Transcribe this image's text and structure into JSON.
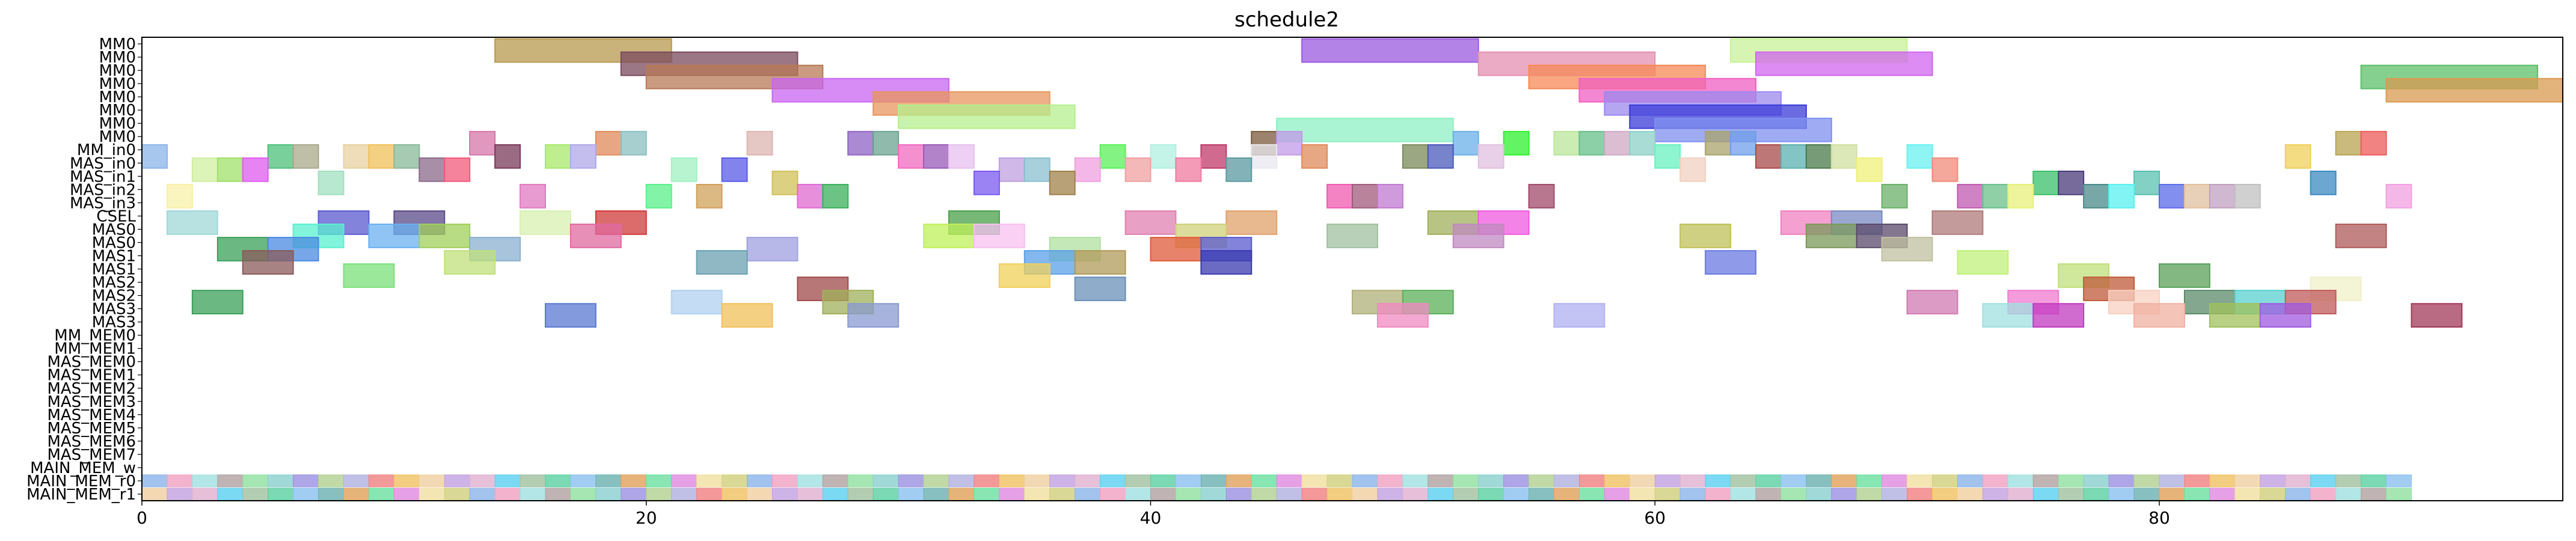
{
  "chart_data": {
    "type": "gantt",
    "title": "schedule2",
    "xlim": [
      0,
      96
    ],
    "xticks": [
      0,
      20,
      40,
      60,
      80
    ],
    "rows": [
      "MM0",
      "MM0",
      "MM0",
      "MM0",
      "MM0",
      "MM0",
      "MM0",
      "MM0",
      "MM_in0",
      "MAS_in0",
      "MAS_in1",
      "MAS_in2",
      "MAS_in3",
      "CSEL",
      "MAS0",
      "MAS0",
      "MAS1",
      "MAS1",
      "MAS2",
      "MAS2",
      "MAS3",
      "MAS3",
      "MM_MEM0",
      "MM_MEM1",
      "MAS_MEM0",
      "MAS_MEM1",
      "MAS_MEM2",
      "MAS_MEM3",
      "MAS_MEM4",
      "MAS_MEM5",
      "MAS_MEM6",
      "MAS_MEM7",
      "MAIN_MEM_w",
      "MAIN_MEM_r0",
      "MAIN_MEM_r1"
    ],
    "tasks": [
      {
        "row": 0,
        "start": 14,
        "end": 21,
        "color": "#b8994e"
      },
      {
        "row": 0,
        "start": 46,
        "end": 53,
        "color": "#9b59e0"
      },
      {
        "row": 0,
        "start": 63,
        "end": 70,
        "color": "#c8f29a"
      },
      {
        "row": 1,
        "start": 19,
        "end": 26,
        "color": "#7a4a5e"
      },
      {
        "row": 1,
        "start": 53,
        "end": 60,
        "color": "#e68fb0"
      },
      {
        "row": 1,
        "start": 64,
        "end": 71,
        "color": "#d066ee"
      },
      {
        "row": 2,
        "start": 20,
        "end": 27,
        "color": "#b87a55"
      },
      {
        "row": 2,
        "start": 55,
        "end": 62,
        "color": "#f58a55"
      },
      {
        "row": 2,
        "start": 88,
        "end": 95,
        "color": "#5cc06a"
      },
      {
        "row": 3,
        "start": 25,
        "end": 32,
        "color": "#c866f0"
      },
      {
        "row": 3,
        "start": 57,
        "end": 64,
        "color": "#ef5fc2"
      },
      {
        "row": 3,
        "start": 89,
        "end": 96,
        "color": "#d99a50"
      },
      {
        "row": 4,
        "start": 29,
        "end": 36,
        "color": "#e8955e"
      },
      {
        "row": 4,
        "start": 58,
        "end": 65,
        "color": "#9c88ee"
      },
      {
        "row": 5,
        "start": 30,
        "end": 37,
        "color": "#b5ef8e"
      },
      {
        "row": 5,
        "start": 59,
        "end": 66,
        "color": "#3a3ad8"
      },
      {
        "row": 6,
        "start": 45,
        "end": 52,
        "color": "#8ef0c4"
      },
      {
        "row": 6,
        "start": 60,
        "end": 67,
        "color": "#7f90ef"
      },
      {
        "row": 7,
        "start": 13,
        "end": 14,
        "color": "#d675a8"
      },
      {
        "row": 7,
        "start": 18,
        "end": 19,
        "color": "#e08a5a"
      },
      {
        "row": 7,
        "start": 19,
        "end": 20,
        "color": "#8abfc0"
      },
      {
        "row": 7,
        "start": 24,
        "end": 25,
        "color": "#dcb4b0"
      },
      {
        "row": 7,
        "start": 28,
        "end": 29,
        "color": "#8f63c4"
      },
      {
        "row": 7,
        "start": 29,
        "end": 30,
        "color": "#6aa390"
      },
      {
        "row": 7,
        "start": 44,
        "end": 45,
        "color": "#7a5a3e"
      },
      {
        "row": 7,
        "start": 45,
        "end": 46,
        "color": "#c29ae8"
      },
      {
        "row": 7,
        "start": 52,
        "end": 53,
        "color": "#6ab0e8"
      },
      {
        "row": 7,
        "start": 54,
        "end": 55,
        "color": "#2ff02f"
      },
      {
        "row": 7,
        "start": 56,
        "end": 57,
        "color": "#b9e59a"
      },
      {
        "row": 7,
        "start": 57,
        "end": 58,
        "color": "#66c08a"
      },
      {
        "row": 7,
        "start": 58,
        "end": 59,
        "color": "#d0a8c4"
      },
      {
        "row": 7,
        "start": 59,
        "end": 60,
        "color": "#8ed0c8"
      },
      {
        "row": 7,
        "start": 62,
        "end": 63,
        "color": "#a9a36a"
      },
      {
        "row": 7,
        "start": 63,
        "end": 64,
        "color": "#6f9fe8"
      },
      {
        "row": 7,
        "start": 87,
        "end": 88,
        "color": "#b8a450"
      },
      {
        "row": 7,
        "start": 88,
        "end": 89,
        "color": "#ee5a5a"
      },
      {
        "row": 8,
        "start": 0,
        "end": 1,
        "color": "#8ab4e8"
      },
      {
        "row": 8,
        "start": 5,
        "end": 6,
        "color": "#4ec07a"
      },
      {
        "row": 8,
        "start": 6,
        "end": 7,
        "color": "#a9a88a"
      },
      {
        "row": 8,
        "start": 8,
        "end": 9,
        "color": "#e8d2a0"
      },
      {
        "row": 8,
        "start": 9,
        "end": 10,
        "color": "#f0c05a"
      },
      {
        "row": 8,
        "start": 10,
        "end": 11,
        "color": "#8ab89a"
      },
      {
        "row": 8,
        "start": 14,
        "end": 15,
        "color": "#7a3a5a"
      },
      {
        "row": 8,
        "start": 16,
        "end": 17,
        "color": "#a8e86a"
      },
      {
        "row": 8,
        "start": 17,
        "end": 18,
        "color": "#b0a8e8"
      },
      {
        "row": 8,
        "start": 30,
        "end": 31,
        "color": "#f06ac0"
      },
      {
        "row": 8,
        "start": 31,
        "end": 32,
        "color": "#9a5ab8"
      },
      {
        "row": 8,
        "start": 32,
        "end": 33,
        "color": "#e8c0f0"
      },
      {
        "row": 8,
        "start": 38,
        "end": 39,
        "color": "#5af05a"
      },
      {
        "row": 8,
        "start": 40,
        "end": 41,
        "color": "#b0f0e0"
      },
      {
        "row": 8,
        "start": 42,
        "end": 43,
        "color": "#c03a6a"
      },
      {
        "row": 8,
        "start": 44,
        "end": 45,
        "color": "#e8e8f0"
      },
      {
        "row": 8,
        "start": 46,
        "end": 47,
        "color": "#e08a5a"
      },
      {
        "row": 8,
        "start": 50,
        "end": 51,
        "color": "#7a8a5a"
      },
      {
        "row": 8,
        "start": 51,
        "end": 52,
        "color": "#4a5ab8"
      },
      {
        "row": 8,
        "start": 53,
        "end": 54,
        "color": "#e0c0e0"
      },
      {
        "row": 8,
        "start": 60,
        "end": 61,
        "color": "#6af0c0"
      },
      {
        "row": 8,
        "start": 64,
        "end": 65,
        "color": "#a84a4a"
      },
      {
        "row": 8,
        "start": 65,
        "end": 66,
        "color": "#5ab0b0"
      },
      {
        "row": 8,
        "start": 66,
        "end": 67,
        "color": "#4a7a4a"
      },
      {
        "row": 8,
        "start": 67,
        "end": 68,
        "color": "#d0e0a0"
      },
      {
        "row": 8,
        "start": 70,
        "end": 71,
        "color": "#6af0f0"
      },
      {
        "row": 8,
        "start": 85,
        "end": 86,
        "color": "#f0d05a"
      },
      {
        "row": 9,
        "start": 2,
        "end": 3,
        "color": "#d0f0a0"
      },
      {
        "row": 9,
        "start": 3,
        "end": 4,
        "color": "#a0e06a"
      },
      {
        "row": 9,
        "start": 4,
        "end": 5,
        "color": "#e05af0"
      },
      {
        "row": 9,
        "start": 11,
        "end": 12,
        "color": "#8a6a8a"
      },
      {
        "row": 9,
        "start": 12,
        "end": 13,
        "color": "#f05a7a"
      },
      {
        "row": 9,
        "start": 21,
        "end": 22,
        "color": "#a0f0c0"
      },
      {
        "row": 9,
        "start": 23,
        "end": 24,
        "color": "#5a5ae8"
      },
      {
        "row": 9,
        "start": 34,
        "end": 35,
        "color": "#c0a0e0"
      },
      {
        "row": 9,
        "start": 35,
        "end": 36,
        "color": "#8ac0d0"
      },
      {
        "row": 9,
        "start": 37,
        "end": 38,
        "color": "#f0a0e0"
      },
      {
        "row": 9,
        "start": 39,
        "end": 40,
        "color": "#f0a0a0"
      },
      {
        "row": 9,
        "start": 41,
        "end": 42,
        "color": "#f07aa0"
      },
      {
        "row": 9,
        "start": 43,
        "end": 44,
        "color": "#5a9aa0"
      },
      {
        "row": 9,
        "start": 61,
        "end": 62,
        "color": "#f0d0c0"
      },
      {
        "row": 9,
        "start": 68,
        "end": 69,
        "color": "#f0f07a"
      },
      {
        "row": 9,
        "start": 71,
        "end": 72,
        "color": "#f08a7a"
      },
      {
        "row": 10,
        "start": 7,
        "end": 8,
        "color": "#a0e0c0"
      },
      {
        "row": 10,
        "start": 25,
        "end": 26,
        "color": "#d0c05a"
      },
      {
        "row": 10,
        "start": 33,
        "end": 34,
        "color": "#7a5af0"
      },
      {
        "row": 10,
        "start": 36,
        "end": 37,
        "color": "#a0804a"
      },
      {
        "row": 10,
        "start": 75,
        "end": 76,
        "color": "#3ac06a"
      },
      {
        "row": 10,
        "start": 76,
        "end": 77,
        "color": "#4a3a7a"
      },
      {
        "row": 10,
        "start": 79,
        "end": 80,
        "color": "#5ac0b0"
      },
      {
        "row": 10,
        "start": 86,
        "end": 87,
        "color": "#3a8ac0"
      },
      {
        "row": 11,
        "start": 1,
        "end": 2,
        "color": "#f8f0a8"
      },
      {
        "row": 11,
        "start": 15,
        "end": 16,
        "color": "#e07ac0"
      },
      {
        "row": 11,
        "start": 20,
        "end": 21,
        "color": "#5af08a"
      },
      {
        "row": 11,
        "start": 22,
        "end": 23,
        "color": "#d0a05a"
      },
      {
        "row": 11,
        "start": 26,
        "end": 27,
        "color": "#e06ad0"
      },
      {
        "row": 11,
        "start": 27,
        "end": 28,
        "color": "#3ab05a"
      },
      {
        "row": 11,
        "start": 47,
        "end": 48,
        "color": "#f05ab0"
      },
      {
        "row": 11,
        "start": 48,
        "end": 49,
        "color": "#a05a7a"
      },
      {
        "row": 11,
        "start": 49,
        "end": 50,
        "color": "#c07ad0"
      },
      {
        "row": 11,
        "start": 55,
        "end": 56,
        "color": "#a04a6a"
      },
      {
        "row": 11,
        "start": 69,
        "end": 70,
        "color": "#6ab06a"
      },
      {
        "row": 11,
        "start": 72,
        "end": 73,
        "color": "#c05ab0"
      },
      {
        "row": 11,
        "start": 73,
        "end": 74,
        "color": "#6ac08a"
      },
      {
        "row": 11,
        "start": 74,
        "end": 75,
        "color": "#e8f07a"
      },
      {
        "row": 11,
        "start": 77,
        "end": 78,
        "color": "#4a8a8a"
      },
      {
        "row": 11,
        "start": 78,
        "end": 79,
        "color": "#5af0f0"
      },
      {
        "row": 11,
        "start": 80,
        "end": 81,
        "color": "#5a6ae8"
      },
      {
        "row": 11,
        "start": 81,
        "end": 82,
        "color": "#e0c0a0"
      },
      {
        "row": 11,
        "start": 82,
        "end": 83,
        "color": "#c0a0c0"
      },
      {
        "row": 11,
        "start": 83,
        "end": 84,
        "color": "#c0c0c0"
      },
      {
        "row": 11,
        "start": 89,
        "end": 90,
        "color": "#f0a0e0"
      },
      {
        "row": 13,
        "start": 1,
        "end": 3,
        "color": "#a0d8d8"
      },
      {
        "row": 13,
        "start": 7,
        "end": 9,
        "color": "#5a5ad0"
      },
      {
        "row": 13,
        "start": 10,
        "end": 12,
        "color": "#5a4a8a"
      },
      {
        "row": 13,
        "start": 15,
        "end": 17,
        "color": "#d8f0b0"
      },
      {
        "row": 13,
        "start": 18,
        "end": 20,
        "color": "#d03a3a"
      },
      {
        "row": 13,
        "start": 32,
        "end": 34,
        "color": "#4aa04a"
      },
      {
        "row": 13,
        "start": 39,
        "end": 41,
        "color": "#e080b0"
      },
      {
        "row": 13,
        "start": 43,
        "end": 45,
        "color": "#e0a06a"
      },
      {
        "row": 13,
        "start": 51,
        "end": 53,
        "color": "#a0b05a"
      },
      {
        "row": 13,
        "start": 53,
        "end": 55,
        "color": "#f05ae0"
      },
      {
        "row": 13,
        "start": 65,
        "end": 67,
        "color": "#f080c0"
      },
      {
        "row": 13,
        "start": 67,
        "end": 69,
        "color": "#7a8ac0"
      },
      {
        "row": 13,
        "start": 71,
        "end": 73,
        "color": "#b07a7a"
      },
      {
        "row": 14,
        "start": 6,
        "end": 8,
        "color": "#5af0d0"
      },
      {
        "row": 14,
        "start": 9,
        "end": 11,
        "color": "#6ab0f0"
      },
      {
        "row": 14,
        "start": 11,
        "end": 13,
        "color": "#a0d05a"
      },
      {
        "row": 14,
        "start": 17,
        "end": 19,
        "color": "#e06aa0"
      },
      {
        "row": 14,
        "start": 31,
        "end": 33,
        "color": "#c0f05a"
      },
      {
        "row": 14,
        "start": 33,
        "end": 35,
        "color": "#f8c0f0"
      },
      {
        "row": 14,
        "start": 41,
        "end": 43,
        "color": "#d0d07a"
      },
      {
        "row": 14,
        "start": 47,
        "end": 49,
        "color": "#a0c0a0"
      },
      {
        "row": 14,
        "start": 52,
        "end": 54,
        "color": "#c08ac0"
      },
      {
        "row": 14,
        "start": 61,
        "end": 63,
        "color": "#c0c05a"
      },
      {
        "row": 14,
        "start": 66,
        "end": 68,
        "color": "#7a9a5a"
      },
      {
        "row": 14,
        "start": 68,
        "end": 70,
        "color": "#5a4a6a"
      },
      {
        "row": 14,
        "start": 87,
        "end": 89,
        "color": "#b05a5a"
      },
      {
        "row": 15,
        "start": 3,
        "end": 5,
        "color": "#3aa05a"
      },
      {
        "row": 15,
        "start": 5,
        "end": 7,
        "color": "#4a8ae0"
      },
      {
        "row": 15,
        "start": 13,
        "end": 15,
        "color": "#8ab0d0"
      },
      {
        "row": 15,
        "start": 24,
        "end": 26,
        "color": "#a0a0e0"
      },
      {
        "row": 15,
        "start": 36,
        "end": 38,
        "color": "#b0e0a0"
      },
      {
        "row": 15,
        "start": 40,
        "end": 42,
        "color": "#e05a3a"
      },
      {
        "row": 15,
        "start": 42,
        "end": 44,
        "color": "#5a5ad0"
      },
      {
        "row": 15,
        "start": 69,
        "end": 71,
        "color": "#c0c0a0"
      },
      {
        "row": 16,
        "start": 4,
        "end": 6,
        "color": "#8a5a5a"
      },
      {
        "row": 16,
        "start": 12,
        "end": 14,
        "color": "#c0e07a"
      },
      {
        "row": 16,
        "start": 22,
        "end": 24,
        "color": "#6aa0b0"
      },
      {
        "row": 16,
        "start": 35,
        "end": 37,
        "color": "#5aa0e8"
      },
      {
        "row": 16,
        "start": 37,
        "end": 39,
        "color": "#b09a5a"
      },
      {
        "row": 16,
        "start": 42,
        "end": 44,
        "color": "#3a3ab0"
      },
      {
        "row": 16,
        "start": 62,
        "end": 64,
        "color": "#6a7ae0"
      },
      {
        "row": 16,
        "start": 72,
        "end": 74,
        "color": "#c0f07a"
      },
      {
        "row": 17,
        "start": 8,
        "end": 10,
        "color": "#7ae07a"
      },
      {
        "row": 17,
        "start": 34,
        "end": 36,
        "color": "#f0d05a"
      },
      {
        "row": 17,
        "start": 76,
        "end": 78,
        "color": "#c0e07a"
      },
      {
        "row": 17,
        "start": 80,
        "end": 82,
        "color": "#5aa05a"
      },
      {
        "row": 18,
        "start": 26,
        "end": 28,
        "color": "#a04a4a"
      },
      {
        "row": 18,
        "start": 37,
        "end": 39,
        "color": "#6a90b8"
      },
      {
        "row": 18,
        "start": 77,
        "end": 79,
        "color": "#c05a3a"
      },
      {
        "row": 18,
        "start": 86,
        "end": 88,
        "color": "#f0f0c8"
      },
      {
        "row": 19,
        "start": 2,
        "end": 4,
        "color": "#3aa05a"
      },
      {
        "row": 19,
        "start": 21,
        "end": 23,
        "color": "#b0d0f0"
      },
      {
        "row": 19,
        "start": 27,
        "end": 29,
        "color": "#a0b05a"
      },
      {
        "row": 19,
        "start": 48,
        "end": 50,
        "color": "#b0b07a"
      },
      {
        "row": 19,
        "start": 50,
        "end": 52,
        "color": "#5ab05a"
      },
      {
        "row": 19,
        "start": 70,
        "end": 72,
        "color": "#d07ab0"
      },
      {
        "row": 19,
        "start": 74,
        "end": 76,
        "color": "#f07ad0"
      },
      {
        "row": 19,
        "start": 78,
        "end": 80,
        "color": "#f8d0c0"
      },
      {
        "row": 19,
        "start": 81,
        "end": 83,
        "color": "#5a8a6a"
      },
      {
        "row": 19,
        "start": 83,
        "end": 85,
        "color": "#5ad0d0"
      },
      {
        "row": 19,
        "start": 85,
        "end": 87,
        "color": "#c05a5a"
      },
      {
        "row": 20,
        "start": 16,
        "end": 18,
        "color": "#5a7ad0"
      },
      {
        "row": 20,
        "start": 23,
        "end": 25,
        "color": "#f0c05a"
      },
      {
        "row": 20,
        "start": 28,
        "end": 30,
        "color": "#8a9ad0"
      },
      {
        "row": 20,
        "start": 49,
        "end": 51,
        "color": "#f08ac0"
      },
      {
        "row": 20,
        "start": 56,
        "end": 58,
        "color": "#b0b0f0"
      },
      {
        "row": 20,
        "start": 73,
        "end": 75,
        "color": "#a0e0e0"
      },
      {
        "row": 20,
        "start": 75,
        "end": 77,
        "color": "#c03ac0"
      },
      {
        "row": 20,
        "start": 79,
        "end": 81,
        "color": "#f0b0a0"
      },
      {
        "row": 20,
        "start": 82,
        "end": 84,
        "color": "#a0c05a"
      },
      {
        "row": 20,
        "start": 84,
        "end": 86,
        "color": "#a05ae0"
      },
      {
        "row": 20,
        "start": 90,
        "end": 92,
        "color": "#a03a5a"
      }
    ]
  }
}
